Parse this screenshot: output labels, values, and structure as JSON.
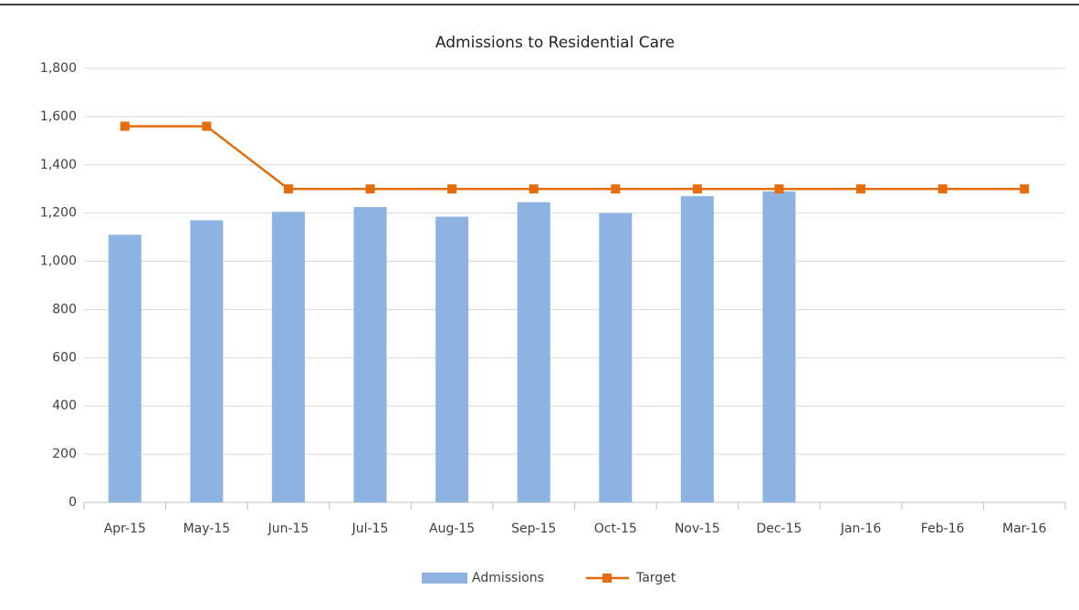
{
  "chart_data": {
    "type": "combo",
    "title": "Admissions to Residential Care",
    "categories": [
      "Apr-15",
      "May-15",
      "Jun-15",
      "Jul-15",
      "Aug-15",
      "Sep-15",
      "Oct-15",
      "Nov-15",
      "Dec-15",
      "Jan-16",
      "Feb-16",
      "Mar-16"
    ],
    "series": [
      {
        "name": "Admissions",
        "type": "bar",
        "color": "#8db3e2",
        "values": [
          1110,
          1170,
          1205,
          1225,
          1185,
          1245,
          1200,
          1270,
          1290,
          null,
          null,
          null
        ]
      },
      {
        "name": "Target",
        "type": "line",
        "color": "#e46c0a",
        "values": [
          1560,
          1560,
          1300,
          1300,
          1300,
          1300,
          1300,
          1300,
          1300,
          1300,
          1300,
          1300
        ]
      }
    ],
    "ylim": [
      0,
      1800
    ],
    "yticks": [
      0,
      200,
      400,
      600,
      800,
      {
        "value": 1000,
        "label": "1,000"
      },
      {
        "value": 1200,
        "label": "1,200"
      },
      {
        "value": 1400,
        "label": "1,400"
      },
      {
        "value": 1600,
        "label": "1,600"
      },
      {
        "value": 1800,
        "label": "1,800"
      }
    ],
    "grid": true,
    "legend": "bottom"
  }
}
